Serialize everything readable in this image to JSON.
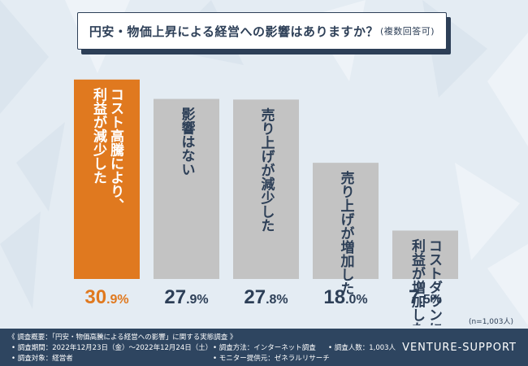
{
  "title": "円安・物価上昇による経営への影響はありますか？",
  "title_suffix": "(複数回答可)",
  "sample_note": "(n=1,003人)",
  "chart_data": {
    "type": "bar",
    "title": "円安・物価上昇による経営への影響はありますか？(複数回答可)",
    "categories": [
      "コスト高騰により、利益が減少した",
      "影響はない",
      "売り上げが減少した",
      "売り上げが増加した",
      "コストダウンにより、利益が増加した"
    ],
    "values": [
      30.9,
      27.9,
      27.8,
      18.0,
      7.5
    ],
    "value_labels": [
      "30.9%",
      "27.9%",
      "27.8%",
      "18.0%",
      "7.5%"
    ],
    "highlight_index": 0,
    "unit": "%",
    "ylim": [
      0,
      31
    ],
    "grid": false,
    "legend": "none"
  },
  "colors": {
    "highlight_bar": "#e0791f",
    "bar": "#c3c3c3",
    "highlight_value": "#e0791f",
    "value": "#2d3f57",
    "footer": "#2e4560",
    "title_border": "#2d3f57"
  },
  "footer": {
    "heading": "《 調査概要：「円安・物価高騰による経営への影響」に関する実態調査 》",
    "period": "• 調査期間：2022年12月23日（金）〜2022年12月24日（土）",
    "method": "• 調査方法：インターネット調査",
    "respondents": "• 調査人数：1,003人",
    "target": "• 調査対象：経営者",
    "provider": "• モニター提供元：ゼネラルリサーチ",
    "brand": "VENTURE-SUPPORT"
  }
}
